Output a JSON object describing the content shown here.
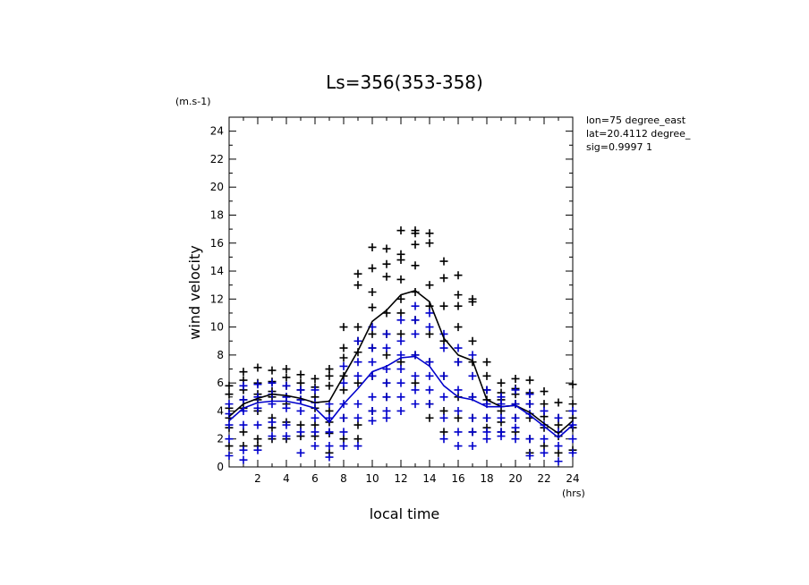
{
  "chart_data": {
    "type": "scatter",
    "title": "Ls=356(353-358)",
    "xlabel": "local time",
    "ylabel": "wind velocity",
    "x_unit": "(hrs)",
    "y_unit": "(m.s-1)",
    "xlim": [
      0,
      24
    ],
    "ylim": [
      0,
      25
    ],
    "x_ticks": [
      2,
      4,
      6,
      8,
      10,
      12,
      14,
      16,
      18,
      20,
      22,
      24
    ],
    "y_ticks": [
      0,
      2,
      4,
      6,
      8,
      10,
      12,
      14,
      16,
      18,
      20,
      22,
      24
    ],
    "grid": false,
    "annotation_lines": [
      "lon=75 degree_east",
      "lat=20.4112 degree_",
      "sig=0.9997 1"
    ],
    "series": [
      {
        "color": "#000000",
        "marker": "plus",
        "x": [
          0,
          0,
          0,
          0,
          0,
          0,
          1,
          1,
          1,
          1,
          1,
          1,
          1,
          2,
          2,
          2,
          2,
          2,
          2,
          2,
          3,
          3,
          3,
          3,
          3,
          3,
          3,
          4,
          4,
          4,
          4,
          4,
          4,
          4,
          5,
          5,
          5,
          5,
          5,
          5,
          6,
          6,
          6,
          6,
          6,
          6,
          7,
          7,
          7,
          7,
          7,
          7,
          7,
          8,
          8,
          8,
          8,
          8,
          8,
          8,
          9,
          9,
          9,
          9,
          9,
          9,
          9,
          9,
          10,
          10,
          10,
          10,
          10,
          10,
          10,
          10,
          11,
          11,
          11,
          11,
          11,
          11,
          11,
          11,
          12,
          12,
          12,
          12,
          12,
          12,
          12,
          12,
          13,
          13,
          13,
          13,
          13,
          13,
          13,
          13,
          14,
          14,
          14,
          14,
          14,
          14,
          14,
          14,
          15,
          15,
          15,
          15,
          15,
          15,
          15,
          16,
          16,
          16,
          16,
          16,
          16,
          16,
          17,
          17,
          17,
          17,
          17,
          17,
          17,
          18,
          18,
          18,
          18,
          18,
          18,
          19,
          19,
          19,
          19,
          19,
          19,
          20,
          20,
          20,
          20,
          20,
          20,
          21,
          21,
          21,
          21,
          21,
          21,
          22,
          22,
          22,
          22,
          22,
          23,
          23,
          23,
          23,
          23,
          24,
          24,
          24,
          24,
          24
        ],
        "y": [
          5.8,
          5.2,
          4.2,
          3.5,
          2.8,
          1.5,
          6.8,
          6.2,
          5.5,
          4.8,
          4.2,
          2.5,
          1.5,
          7.1,
          6.0,
          5.2,
          4.8,
          4.0,
          2.0,
          1.5,
          6.9,
          6.1,
          5.4,
          5.0,
          3.5,
          2.8,
          2.0,
          7.0,
          6.4,
          5.8,
          5.0,
          4.5,
          3.2,
          2.0,
          6.6,
          6.0,
          5.5,
          4.8,
          3.0,
          2.2,
          6.3,
          5.7,
          5.0,
          4.2,
          3.0,
          2.2,
          7.0,
          6.5,
          5.8,
          4.0,
          3.2,
          2.4,
          1.0,
          10.0,
          8.5,
          7.8,
          6.5,
          5.5,
          3.5,
          2.0,
          13.8,
          13.0,
          10.0,
          9.0,
          8.2,
          6.0,
          3.0,
          2.0,
          15.7,
          14.2,
          12.5,
          11.4,
          9.5,
          8.5,
          6.5,
          4.0,
          15.6,
          14.5,
          13.6,
          11.0,
          9.5,
          8.0,
          6.0,
          5.0,
          16.9,
          15.2,
          14.8,
          13.4,
          12.0,
          11.0,
          9.5,
          7.5,
          16.9,
          16.7,
          15.9,
          14.4,
          12.5,
          10.5,
          8.0,
          6.0,
          16.7,
          16.0,
          13.0,
          11.5,
          9.5,
          7.5,
          4.5,
          3.5,
          14.7,
          13.5,
          11.5,
          9.0,
          6.5,
          4.0,
          2.5,
          13.7,
          12.3,
          11.5,
          10.0,
          7.5,
          5.0,
          3.5,
          12.0,
          11.8,
          9.0,
          7.5,
          5.0,
          3.5,
          2.5,
          7.5,
          6.5,
          5.5,
          4.8,
          3.5,
          2.8,
          6.0,
          5.3,
          4.8,
          4.0,
          3.2,
          2.5,
          6.3,
          5.6,
          5.2,
          4.5,
          3.5,
          2.5,
          6.2,
          5.3,
          4.5,
          3.5,
          2.0,
          1.0,
          5.4,
          4.5,
          3.6,
          2.8,
          1.5,
          4.6,
          3.5,
          3.0,
          2.2,
          1.0,
          5.9,
          4.5,
          3.5,
          2.8,
          1.2
        ]
      },
      {
        "color": "#0000cc",
        "marker": "plus",
        "x": [
          0,
          0,
          0,
          0,
          0,
          1,
          1,
          1,
          1,
          1,
          1,
          2,
          2,
          2,
          2,
          2,
          3,
          3,
          3,
          3,
          3,
          4,
          4,
          4,
          4,
          4,
          5,
          5,
          5,
          5,
          5,
          6,
          6,
          6,
          6,
          6,
          7,
          7,
          7,
          7,
          7,
          8,
          8,
          8,
          8,
          8,
          8,
          9,
          9,
          9,
          9,
          9,
          9,
          10,
          10,
          10,
          10,
          10,
          10,
          10,
          11,
          11,
          11,
          11,
          11,
          11,
          11,
          12,
          12,
          12,
          12,
          12,
          12,
          12,
          13,
          13,
          13,
          13,
          13,
          13,
          13,
          14,
          14,
          14,
          14,
          14,
          14,
          15,
          15,
          15,
          15,
          15,
          15,
          16,
          16,
          16,
          16,
          16,
          16,
          17,
          17,
          17,
          17,
          17,
          17,
          18,
          18,
          18,
          18,
          18,
          19,
          19,
          19,
          19,
          19,
          20,
          20,
          20,
          20,
          20,
          21,
          21,
          21,
          21,
          21,
          22,
          22,
          22,
          22,
          23,
          23,
          23,
          23,
          24,
          24,
          24,
          24
        ],
        "y": [
          4.5,
          3.8,
          3.0,
          2.0,
          0.8,
          5.8,
          4.8,
          4.0,
          3.0,
          1.2,
          0.5,
          5.9,
          5.0,
          4.2,
          3.0,
          1.2,
          6.0,
          5.2,
          4.5,
          3.2,
          2.2,
          5.8,
          5.0,
          4.2,
          3.0,
          2.2,
          5.5,
          4.8,
          4.0,
          2.5,
          1.0,
          5.5,
          4.6,
          3.5,
          2.5,
          1.5,
          4.5,
          3.5,
          2.5,
          1.5,
          0.7,
          7.2,
          6.0,
          4.5,
          3.5,
          2.5,
          1.5,
          9.0,
          7.5,
          6.5,
          4.5,
          3.5,
          1.5,
          10.0,
          8.5,
          7.5,
          6.5,
          5.0,
          4.0,
          3.3,
          9.5,
          8.5,
          7.0,
          6.0,
          5.0,
          4.0,
          3.5,
          10.5,
          9.0,
          8.0,
          7.0,
          6.0,
          5.0,
          4.0,
          11.5,
          10.5,
          9.5,
          8.0,
          6.5,
          5.5,
          4.5,
          11.0,
          10.0,
          7.5,
          6.5,
          5.5,
          4.5,
          9.5,
          8.5,
          6.5,
          5.0,
          3.5,
          2.0,
          8.5,
          7.5,
          5.5,
          4.0,
          2.5,
          1.5,
          8.0,
          6.5,
          5.0,
          3.5,
          2.5,
          1.5,
          5.5,
          4.5,
          3.5,
          2.5,
          2.0,
          5.0,
          4.5,
          3.5,
          2.5,
          2.2,
          5.5,
          4.5,
          3.5,
          2.8,
          2.0,
          5.2,
          4.5,
          3.8,
          2.0,
          0.8,
          4.0,
          3.0,
          2.0,
          1.0,
          3.5,
          2.5,
          1.5,
          0.4,
          4.0,
          3.0,
          2.0,
          1.0
        ]
      },
      {
        "color": "#000000",
        "marker": "line",
        "x": [
          0,
          1,
          2,
          3,
          4,
          5,
          6,
          7,
          8,
          9,
          10,
          11,
          12,
          13,
          14,
          15,
          16,
          17,
          18,
          19,
          20,
          21,
          22,
          23,
          24
        ],
        "y": [
          3.6,
          4.5,
          4.9,
          5.2,
          5.1,
          4.9,
          4.6,
          4.7,
          6.5,
          8.3,
          10.4,
          11.2,
          12.3,
          12.6,
          11.8,
          9.2,
          8.0,
          7.6,
          4.8,
          4.3,
          4.4,
          3.9,
          3.1,
          2.4,
          3.3
        ]
      },
      {
        "color": "#0000cc",
        "marker": "line",
        "x": [
          0,
          1,
          2,
          3,
          4,
          5,
          6,
          7,
          8,
          9,
          10,
          11,
          12,
          13,
          14,
          15,
          16,
          17,
          18,
          19,
          20,
          21,
          22,
          23,
          24
        ],
        "y": [
          3.3,
          4.2,
          4.6,
          4.7,
          4.7,
          4.5,
          4.2,
          3.2,
          4.5,
          5.6,
          6.8,
          7.2,
          7.8,
          7.9,
          7.2,
          5.8,
          5.0,
          4.8,
          4.3,
          4.3,
          4.4,
          3.7,
          2.9,
          2.1,
          3.0
        ]
      }
    ]
  }
}
